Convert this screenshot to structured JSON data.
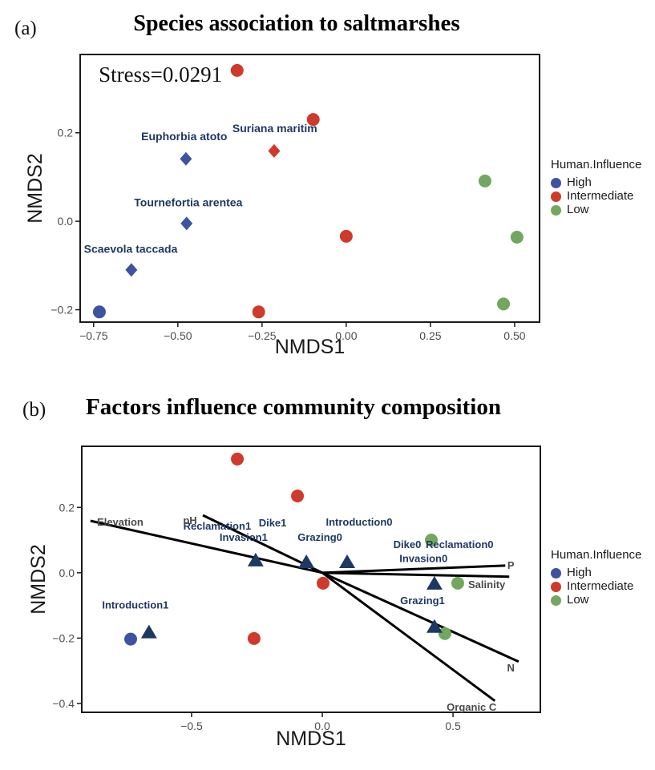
{
  "figure": {
    "panels": [
      {
        "tag": "(a)",
        "title": "Species association to saltmarshes",
        "title_regular": "Species association to salt",
        "title_heavy": "marshes"
      },
      {
        "tag": "(b)",
        "title": "Factors influence community composition"
      }
    ]
  },
  "legend": {
    "title": "Human.Influence",
    "items": [
      {
        "label": "High",
        "color": "#3E53A0"
      },
      {
        "label": "Intermediate",
        "color": "#CF3A2B"
      },
      {
        "label": "Low",
        "color": "#72A75F"
      }
    ]
  },
  "colors": {
    "high": "#3E53A0",
    "intermediate": "#CF3A2B",
    "low": "#72A75F",
    "centroid_navy": "#1E3864",
    "species_label": "#1E3864",
    "vector_label": "#4A4A4A",
    "axis_text": "#1A1A1A",
    "tick_text": "#4D4D4D",
    "vector_line": "#000000",
    "panel_border": "#1A1A1A"
  },
  "chart_data": [
    {
      "id": "a",
      "type": "scatter",
      "title": "Species association to saltmarshes",
      "annotation": {
        "text": "Stress=0.0291",
        "x": -0.735,
        "y": 0.332
      },
      "xlabel": "NMDS1",
      "ylabel": "NMDS2",
      "xlim": [
        -0.79,
        0.574
      ],
      "ylim": [
        -0.228,
        0.377
      ],
      "grid": false,
      "legend_position": "right",
      "xticks": [
        {
          "v": -0.75,
          "label": "−0.75"
        },
        {
          "v": -0.5,
          "label": "−0.50"
        },
        {
          "v": -0.25,
          "label": "−0.25"
        },
        {
          "v": 0,
          "label": "0.00"
        },
        {
          "v": 0.25,
          "label": "0.25"
        },
        {
          "v": 0.5,
          "label": "0.50"
        }
      ],
      "yticks": [
        {
          "v": 0.2,
          "label": "0.2"
        },
        {
          "v": 0,
          "label": "0.0"
        },
        {
          "v": -0.2,
          "label": "−0.2"
        }
      ],
      "series": [
        {
          "name": "High",
          "marker": "circle",
          "color": "#3E53A0",
          "points": [
            [
              -0.733,
              -0.205
            ]
          ]
        },
        {
          "name": "Intermediate",
          "marker": "circle",
          "color": "#CF3A2B",
          "points": [
            [
              -0.324,
              0.341
            ],
            [
              -0.098,
              0.23
            ],
            [
              0.0,
              -0.034
            ],
            [
              -0.26,
              -0.205
            ]
          ]
        },
        {
          "name": "Low",
          "marker": "circle",
          "color": "#72A75F",
          "points": [
            [
              0.412,
              0.091
            ],
            [
              0.507,
              -0.036
            ],
            [
              0.467,
              -0.187
            ]
          ]
        }
      ],
      "species_points": [
        {
          "name": "Euphorbia atoto",
          "marker": "diamond",
          "color": "#3E53A0",
          "x": -0.476,
          "y": 0.141,
          "label_x": -0.481,
          "label_y": 0.192
        },
        {
          "name": "Tournefortia arentea",
          "marker": "diamond",
          "color": "#3E53A0",
          "x": -0.474,
          "y": -0.005,
          "label_x": -0.469,
          "label_y": 0.043
        },
        {
          "name": "Scaevola taccada",
          "marker": "diamond",
          "color": "#3E53A0",
          "x": -0.638,
          "y": -0.11,
          "label_x": -0.64,
          "label_y": -0.062
        },
        {
          "name": "Suriana maritim",
          "marker": "diamond",
          "color": "#CF3A2B",
          "x": -0.214,
          "y": 0.159,
          "label_x": -0.212,
          "label_y": 0.21
        }
      ]
    },
    {
      "id": "b",
      "type": "scatter",
      "title": "Factors influence community composition",
      "xlabel": "NMDS1",
      "ylabel": "NMDS2",
      "xlim": [
        -0.92,
        0.834
      ],
      "ylim": [
        -0.427,
        0.387
      ],
      "grid": false,
      "legend_position": "right",
      "xticks": [
        {
          "v": -0.5,
          "label": "−0.5"
        },
        {
          "v": 0,
          "label": "0.0"
        },
        {
          "v": 0.5,
          "label": "0.5"
        }
      ],
      "yticks": [
        {
          "v": 0.2,
          "label": "0.2"
        },
        {
          "v": 0,
          "label": "0.0"
        },
        {
          "v": -0.2,
          "label": "−0.2"
        },
        {
          "v": -0.4,
          "label": "−0.4"
        }
      ],
      "series": [
        {
          "name": "High",
          "marker": "circle",
          "color": "#3E53A0",
          "points": [
            [
              -0.733,
              -0.203
            ]
          ]
        },
        {
          "name": "Intermediate",
          "marker": "circle",
          "color": "#CF3A2B",
          "points": [
            [
              -0.325,
              0.348
            ],
            [
              -0.095,
              0.235
            ],
            [
              0.003,
              -0.032
            ],
            [
              -0.261,
              -0.201
            ]
          ]
        },
        {
          "name": "Low",
          "marker": "circle",
          "color": "#72A75F",
          "points": [
            [
              0.417,
              0.1
            ],
            [
              0.518,
              -0.032
            ],
            [
              0.469,
              -0.186
            ]
          ]
        }
      ],
      "centroids": {
        "marker": "triangle",
        "color": "#1E3864",
        "points": [
          [
            -0.255,
            0.039
          ],
          [
            -0.061,
            0.034
          ],
          [
            0.095,
            0.034
          ],
          [
            0.429,
            -0.032
          ],
          [
            0.429,
            -0.164
          ],
          [
            -0.663,
            -0.181
          ]
        ]
      },
      "centroid_labels": [
        {
          "text": "Reclamation1",
          "x": -0.402,
          "y": 0.142
        },
        {
          "text": "Dike1",
          "x": -0.19,
          "y": 0.152
        },
        {
          "text": "Introduction0",
          "x": 0.141,
          "y": 0.154
        },
        {
          "text": "Invasion1",
          "x": -0.301,
          "y": 0.108
        },
        {
          "text": "Grazing0",
          "x": -0.009,
          "y": 0.108
        },
        {
          "text": "Dike0",
          "x": 0.325,
          "y": 0.086
        },
        {
          "text": "Reclamation0",
          "x": 0.525,
          "y": 0.086
        },
        {
          "text": "Invasion0",
          "x": 0.387,
          "y": 0.042
        },
        {
          "text": "Grazing1",
          "x": 0.383,
          "y": -0.086
        },
        {
          "text": "Introduction1",
          "x": -0.715,
          "y": -0.1
        }
      ],
      "vectors": [
        {
          "name": "Elevation",
          "x": -0.887,
          "y": 0.159,
          "label_x": -0.773,
          "label_y": 0.154
        },
        {
          "name": "pH",
          "x": -0.457,
          "y": 0.176,
          "label_x": -0.506,
          "label_y": 0.159
        },
        {
          "name": "P",
          "x": 0.7,
          "y": 0.022,
          "label_x": 0.721,
          "label_y": 0.022
        },
        {
          "name": "Salinity",
          "x": 0.715,
          "y": -0.012,
          "label_x": 0.629,
          "label_y": -0.037
        },
        {
          "name": "N",
          "x": 0.751,
          "y": -0.272,
          "label_x": 0.721,
          "label_y": -0.292
        },
        {
          "name": "Organic C",
          "x": 0.66,
          "y": -0.392,
          "label_x": 0.571,
          "label_y": -0.412
        }
      ]
    }
  ]
}
